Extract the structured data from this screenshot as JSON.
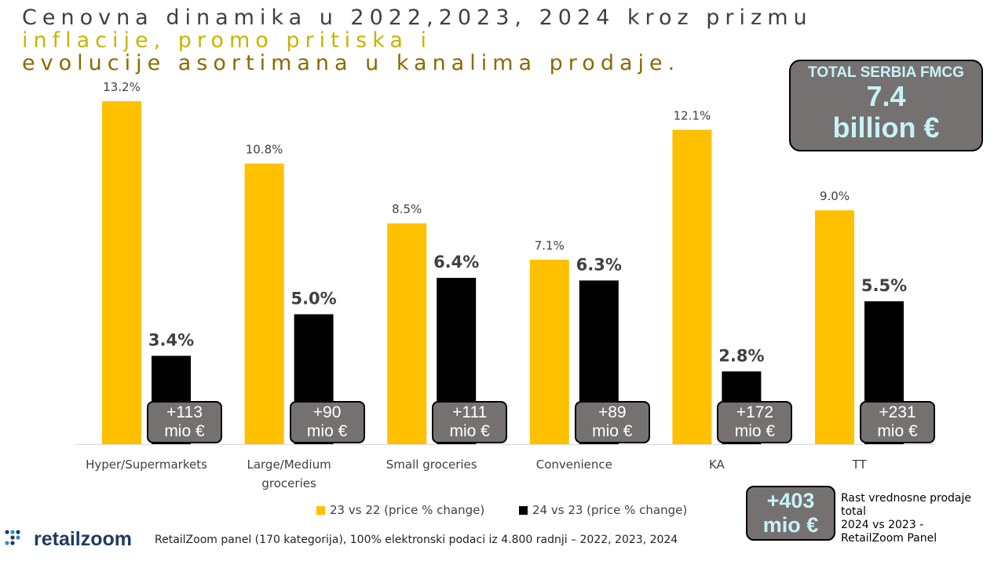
{
  "title": {
    "line1": "Cenovna dinamika u 2022,2023, 2024 kroz prizmu",
    "line2": "inflacije, promo pritiska i",
    "line3": "evolucije asortimana u kanalima prodaje."
  },
  "total_box": {
    "label": "TOTAL SERBIA FMCG",
    "value": "7.4",
    "unit": "billion €"
  },
  "colors": {
    "series1": "#FFC000",
    "series2": "#000000",
    "box_bg": "#767171",
    "box_accent_text": "#C6F3F7"
  },
  "chart_data": {
    "type": "bar",
    "categories": [
      "Hyper/Supermarkets",
      "Large/Medium groceries",
      "Small groceries",
      "Convenience",
      "KA",
      "TT"
    ],
    "series": [
      {
        "name": "23 vs 22 (price % change)",
        "values": [
          13.2,
          10.8,
          8.5,
          7.1,
          12.1,
          9.0
        ],
        "labels": [
          "13.2%",
          "10.8%",
          "8.5%",
          "7.1%",
          "12.1%",
          "9.0%"
        ]
      },
      {
        "name": "24 vs 23 (price % change)",
        "values": [
          3.4,
          5.0,
          6.4,
          6.3,
          2.8,
          5.5
        ],
        "labels": [
          "3.4%",
          "5.0%",
          "6.4%",
          "6.3%",
          "2.8%",
          "5.5%"
        ]
      }
    ],
    "annotations": [
      {
        "line1": "+113",
        "line2": "mio €"
      },
      {
        "line1": "+90",
        "line2": "mio €"
      },
      {
        "line1": "+111",
        "line2": "mio €"
      },
      {
        "line1": "+89",
        "line2": "mio €"
      },
      {
        "line1": "+172",
        "line2": "mio €"
      },
      {
        "line1": "+231",
        "line2": "mio €"
      }
    ],
    "ylim": [
      0,
      13.2
    ],
    "grid": false,
    "legend": "bottom-center"
  },
  "summary_box": {
    "line1": "+403",
    "line2": "mio €"
  },
  "side_note": {
    "line1": "Rast vrednosne prodaje",
    "line2": "total",
    "line3": "2024 vs 2023 -",
    "line4": "RetailZoom Panel"
  },
  "logo": {
    "text": "retailzoom",
    "icon": "retailzoom-dots-icon"
  },
  "footer": {
    "source": "RetailZoom panel (170 kategorija), 100% elektronski podaci iz 4.800 radnji – 2022, 2023, 2024"
  }
}
